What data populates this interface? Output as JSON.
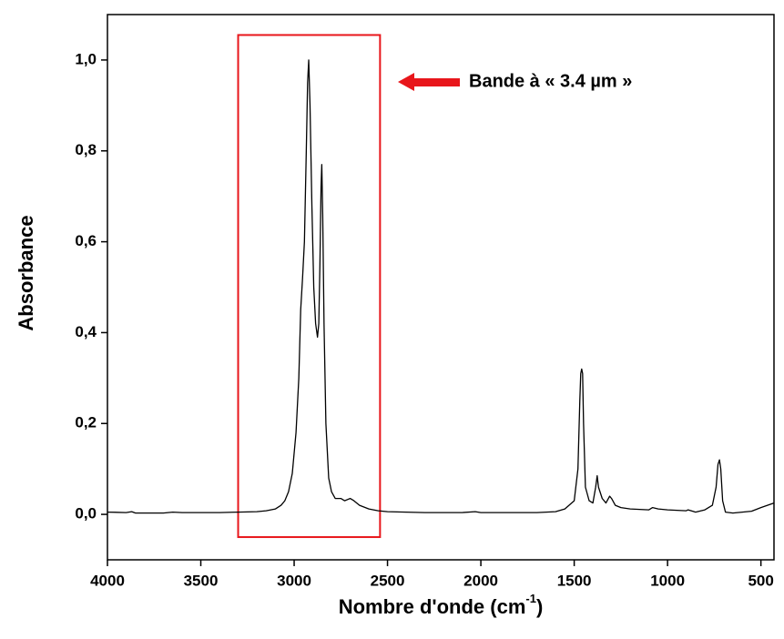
{
  "chart_data": {
    "type": "line",
    "x_label": "Nombre d'onde (cm",
    "x_label_sup": "-1",
    "x_label_end": ")",
    "y_label": "Absorbance",
    "annotation": "Bande à « 3.4 µm »",
    "highlight": {
      "x": [
        3300,
        2540
      ],
      "y": [
        1.055,
        -0.05
      ],
      "color": "#e8161b"
    },
    "xlim": [
      4000,
      430
    ],
    "ylim": [
      -0.1,
      1.1
    ],
    "xticks": [
      4000,
      3500,
      3000,
      2500,
      2000,
      1500,
      1000,
      500
    ],
    "yticks": [
      {
        "value": 0,
        "label": "0,0"
      },
      {
        "value": 0.2,
        "label": "0,2"
      },
      {
        "value": 0.4,
        "label": "0,4"
      },
      {
        "value": 0.6,
        "label": "0,6"
      },
      {
        "value": 0.8,
        "label": "0,8"
      },
      {
        "value": 1.0,
        "label": "1,0"
      }
    ],
    "series": [
      {
        "color": "#000000",
        "x": [
          4000,
          3900,
          3870,
          3850,
          3700,
          3650,
          3600,
          3500,
          3400,
          3300,
          3200,
          3150,
          3100,
          3070,
          3050,
          3030,
          3010,
          2990,
          2975,
          2965,
          2955,
          2945,
          2935,
          2928,
          2922,
          2915,
          2905,
          2895,
          2885,
          2875,
          2868,
          2862,
          2856,
          2852,
          2847,
          2840,
          2830,
          2815,
          2800,
          2780,
          2750,
          2730,
          2700,
          2680,
          2650,
          2600,
          2550,
          2500,
          2400,
          2300,
          2200,
          2100,
          2030,
          2000,
          1800,
          1700,
          1600,
          1550,
          1500,
          1480,
          1470,
          1465,
          1460,
          1455,
          1450,
          1440,
          1420,
          1400,
          1385,
          1377,
          1370,
          1350,
          1330,
          1310,
          1300,
          1280,
          1250,
          1200,
          1100,
          1080,
          1050,
          1000,
          900,
          890,
          850,
          800,
          760,
          740,
          730,
          722,
          715,
          705,
          690,
          650,
          600,
          550,
          500,
          430
        ],
        "values": [
          0.005,
          0.004,
          0.006,
          0.003,
          0.003,
          0.005,
          0.004,
          0.004,
          0.004,
          0.005,
          0.006,
          0.008,
          0.012,
          0.02,
          0.03,
          0.05,
          0.09,
          0.18,
          0.3,
          0.45,
          0.52,
          0.6,
          0.8,
          0.95,
          1.0,
          0.9,
          0.68,
          0.5,
          0.42,
          0.39,
          0.42,
          0.55,
          0.72,
          0.77,
          0.66,
          0.42,
          0.2,
          0.08,
          0.05,
          0.035,
          0.035,
          0.03,
          0.035,
          0.03,
          0.02,
          0.012,
          0.008,
          0.006,
          0.005,
          0.004,
          0.004,
          0.004,
          0.006,
          0.004,
          0.004,
          0.004,
          0.006,
          0.012,
          0.03,
          0.1,
          0.25,
          0.31,
          0.32,
          0.31,
          0.2,
          0.06,
          0.03,
          0.025,
          0.06,
          0.085,
          0.06,
          0.035,
          0.025,
          0.04,
          0.035,
          0.02,
          0.015,
          0.012,
          0.01,
          0.015,
          0.012,
          0.01,
          0.008,
          0.01,
          0.005,
          0.01,
          0.02,
          0.06,
          0.11,
          0.12,
          0.1,
          0.03,
          0.005,
          0.003,
          0.005,
          0.007,
          0.015,
          0.025
        ]
      }
    ]
  }
}
